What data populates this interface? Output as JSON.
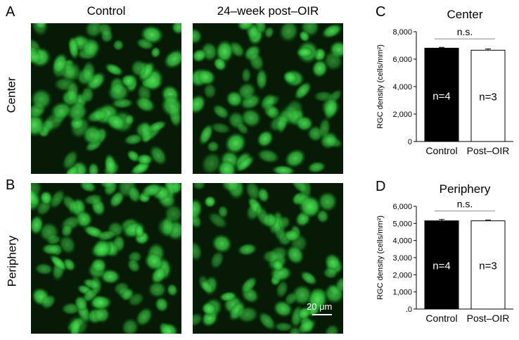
{
  "figure": {
    "panel_labels": {
      "a": "A",
      "b": "B",
      "c": "C",
      "d": "D"
    },
    "column_headers": [
      "Control",
      "24–week post–OIR"
    ],
    "row_headers": [
      "Center",
      "Periphery"
    ],
    "scale_bar_label": "20 μm"
  },
  "colors": {
    "cell_fluorescence": "#2fbf3a",
    "tissue_background": "#061a06",
    "control_bar": "#000000",
    "postoir_bar": "#ffffff"
  },
  "chart_data": [
    {
      "type": "bar",
      "title": "Center",
      "ylabel": "RGC density (cells/mm²)",
      "categories": [
        "Control",
        "Post–OIR"
      ],
      "values": [
        6800,
        6650
      ],
      "errors": [
        60,
        90
      ],
      "bar_labels": [
        "n=4",
        "n=3"
      ],
      "ylim": [
        0,
        8000
      ],
      "yticks": [
        0,
        2000,
        4000,
        6000,
        8000
      ],
      "ytick_labels": [
        "0",
        "2,000",
        "4,000",
        "6,000",
        "8,000"
      ],
      "significance": "n.s.",
      "grid": false
    },
    {
      "type": "bar",
      "title": "Periphery",
      "ylabel": "RGC density (cells/mm²)",
      "categories": [
        "Control",
        "Post–OIR"
      ],
      "values": [
        5150,
        5150
      ],
      "errors": [
        80,
        40
      ],
      "bar_labels": [
        "n=4",
        "n=3"
      ],
      "ylim": [
        0,
        6000
      ],
      "yticks": [
        0,
        1000,
        2000,
        3000,
        4000,
        5000,
        6000
      ],
      "ytick_labels": [
        ".0",
        "1,000",
        "2,000",
        "3,000",
        "4,000",
        "5,000",
        "6,000"
      ],
      "significance": "n.s.",
      "grid": false
    }
  ]
}
